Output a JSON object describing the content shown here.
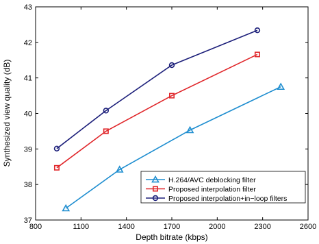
{
  "chart_data": {
    "type": "line",
    "xlabel": "Depth bitrate (kbps)",
    "ylabel": "Synthesized view quality (dB)",
    "xlim": [
      800,
      2600
    ],
    "ylim": [
      37,
      43
    ],
    "xticks": [
      800,
      1100,
      1400,
      1700,
      2000,
      2300,
      2600
    ],
    "yticks": [
      37,
      38,
      39,
      40,
      41,
      42,
      43
    ],
    "grid": false,
    "legend_position": "bottom-right",
    "series": [
      {
        "name": "H.264/AVC deblocking filter",
        "marker": "triangle",
        "color": "#1f8ed0",
        "x": [
          1000,
          1355,
          1820,
          2420
        ],
        "y": [
          37.33,
          38.42,
          39.53,
          40.75
        ]
      },
      {
        "name": "Proposed interpolation filter",
        "marker": "square",
        "color": "#e0262a",
        "x": [
          940,
          1265,
          1700,
          2265
        ],
        "y": [
          38.47,
          39.5,
          40.5,
          41.66
        ]
      },
      {
        "name": "Proposed interpolation+in−loop filters",
        "marker": "circle",
        "color": "#1c1f7a",
        "x": [
          940,
          1265,
          1700,
          2265
        ],
        "y": [
          39.01,
          40.08,
          41.36,
          42.34
        ]
      }
    ]
  }
}
